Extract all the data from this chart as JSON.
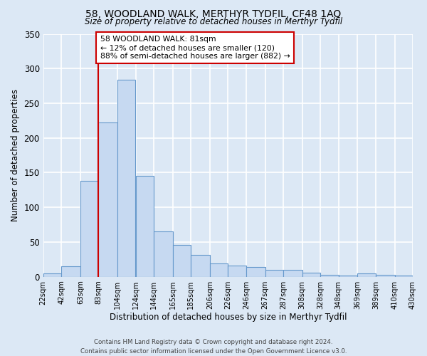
{
  "title": "58, WOODLAND WALK, MERTHYR TYDFIL, CF48 1AQ",
  "subtitle": "Size of property relative to detached houses in Merthyr Tydfil",
  "xlabel": "Distribution of detached houses by size in Merthyr Tydfil",
  "ylabel": "Number of detached properties",
  "bin_labels": [
    "22sqm",
    "42sqm",
    "63sqm",
    "83sqm",
    "104sqm",
    "124sqm",
    "144sqm",
    "165sqm",
    "185sqm",
    "206sqm",
    "226sqm",
    "246sqm",
    "267sqm",
    "287sqm",
    "308sqm",
    "328sqm",
    "348sqm",
    "369sqm",
    "389sqm",
    "410sqm",
    "430sqm"
  ],
  "bar_values": [
    5,
    15,
    138,
    222,
    284,
    145,
    65,
    46,
    31,
    19,
    16,
    14,
    10,
    10,
    6,
    3,
    2,
    5,
    3,
    2
  ],
  "bar_color": "#c6d9f1",
  "bar_edge_color": "#6699cc",
  "vline_color": "#cc0000",
  "annotation_text": "58 WOODLAND WALK: 81sqm\n← 12% of detached houses are smaller (120)\n88% of semi-detached houses are larger (882) →",
  "annotation_box_color": "#ffffff",
  "annotation_box_edge": "#cc0000",
  "ylim": [
    0,
    350
  ],
  "yticks": [
    0,
    50,
    100,
    150,
    200,
    250,
    300,
    350
  ],
  "bg_color": "#dce8f5",
  "plot_bg_color": "#dce8f5",
  "grid_color": "#ffffff",
  "footer": "Contains HM Land Registry data © Crown copyright and database right 2024.\nContains public sector information licensed under the Open Government Licence v3.0.",
  "bin_edges": [
    22,
    42,
    63,
    83,
    104,
    124,
    144,
    165,
    185,
    206,
    226,
    246,
    267,
    287,
    308,
    328,
    348,
    369,
    389,
    410,
    430
  ]
}
